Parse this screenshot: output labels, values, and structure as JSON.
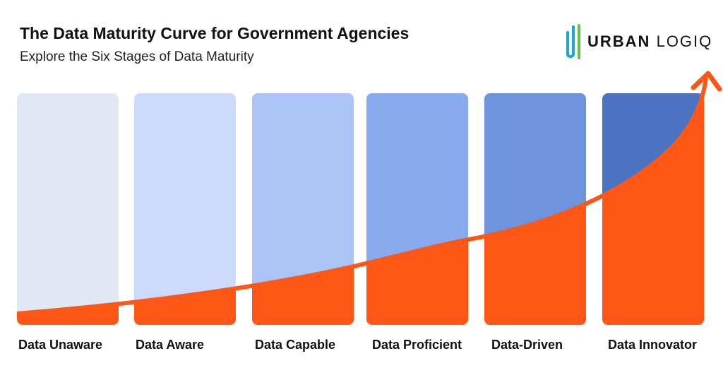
{
  "header": {
    "title": "The Data Maturity Curve for Government Agencies",
    "subtitle": "Explore the Six Stages of Data Maturity"
  },
  "logo": {
    "bold": "URBAN",
    "light": "LOGIQ",
    "colors": [
      "#1aa6d6",
      "#5cc24a"
    ]
  },
  "stages": [
    {
      "label": "Data Unaware",
      "color": "#e1e7f3"
    },
    {
      "label": "Data Aware",
      "color": "#ccdbfb"
    },
    {
      "label": "Data Capable",
      "color": "#abc4f5"
    },
    {
      "label": "Data Proficient",
      "color": "#8aaaf0"
    },
    {
      "label": "Data-Driven",
      "color": "#6d94dc"
    },
    {
      "label": "Data Innovator",
      "color": "#4c73c2"
    }
  ],
  "curve_color": "#fe5716"
}
